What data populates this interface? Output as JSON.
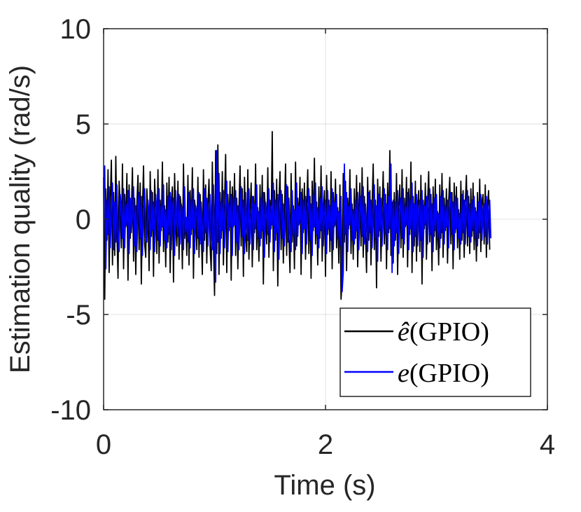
{
  "chart_data": {
    "type": "line",
    "xlabel": "Time (s)",
    "ylabel": "Estimation quality (rad/s)",
    "xlim": [
      0,
      4
    ],
    "ylim": [
      -10,
      10
    ],
    "xticks": [
      0,
      2,
      4
    ],
    "xtick_labels": [
      "0",
      "2",
      "4"
    ],
    "yticks": [
      -10,
      -5,
      0,
      5,
      10
    ],
    "ytick_labels": [
      "-10",
      "-5",
      "0",
      "5",
      "10"
    ],
    "grid": true,
    "legend_position": "bottom-right",
    "series": [
      {
        "name_prefix": "ê",
        "name_suffix": "(GPIO)",
        "color": "#000000",
        "sample_step": 0.01,
        "x_start": 0.0,
        "values": [
          2.2,
          -4.2,
          1.6,
          -1.1,
          2.6,
          -2.8,
          0.9,
          3.1,
          -2.4,
          1.4,
          -1.9,
          3.3,
          -0.7,
          -3.1,
          2.0,
          0.6,
          -1.5,
          2.9,
          -2.6,
          1.3,
          -0.4,
          2.4,
          -3.2,
          1.8,
          -1.0,
          0.3,
          2.7,
          -2.2,
          1.1,
          -2.9,
          0.8,
          2.3,
          -1.6,
          1.9,
          -3.4,
          0.5,
          2.8,
          -1.3,
          -2.0,
          1.6,
          0.2,
          -2.7,
          2.5,
          -0.9,
          1.4,
          -3.0,
          2.1,
          0.4,
          -1.8,
          2.6,
          -2.3,
          1.0,
          -0.6,
          3.0,
          -1.7,
          0.7,
          -2.5,
          1.9,
          -1.2,
          2.2,
          -2.8,
          0.9,
          1.7,
          -3.3,
          2.4,
          -0.3,
          -1.4,
          2.0,
          -2.1,
          1.2,
          0.6,
          -2.6,
          2.9,
          -1.0,
          0.1,
          -1.9,
          2.3,
          -2.4,
          1.5,
          -0.8,
          2.7,
          -3.1,
          1.0,
          0.4,
          -1.6,
          2.2,
          -2.0,
          1.3,
          -0.5,
          -2.9,
          2.6,
          -1.1,
          1.8,
          -2.3,
          0.7,
          2.1,
          -1.5,
          -2.7,
          3.0,
          -1.2,
          -4.0,
          3.6,
          -1.8,
          3.9,
          -2.9,
          1.4,
          -1.0,
          2.5,
          -2.4,
          0.9,
          3.4,
          -2.8,
          1.3,
          -0.6,
          2.0,
          -3.2,
          1.7,
          -0.4,
          2.4,
          -1.9,
          1.1,
          -2.6,
          0.5,
          2.8,
          -1.4,
          1.6,
          -3.0,
          2.2,
          -0.8,
          -1.7,
          2.6,
          -2.1,
          0.3,
          1.9,
          -2.5,
          1.2,
          -0.7,
          2.9,
          -1.6,
          0.6,
          -2.2,
          1.8,
          -1.0,
          2.3,
          -3.4,
          1.4,
          0.2,
          -1.3,
          2.7,
          -2.0,
          1.0,
          -0.5,
          4.6,
          -2.7,
          1.5,
          -1.1,
          2.1,
          -3.5,
          0.8,
          2.5,
          -1.6,
          1.3,
          -2.3,
          0.4,
          2.9,
          -1.9,
          1.7,
          -0.9,
          -2.8,
          2.4,
          -1.2,
          0.7,
          -2.6,
          3.0,
          -1.4,
          1.1,
          -0.3,
          2.2,
          -2.9,
          1.6,
          -0.7,
          1.9,
          -2.1,
          0.5,
          2.6,
          -1.8,
          1.2,
          -3.1,
          2.0,
          -0.6,
          3.2,
          -1.3,
          0.9,
          -2.4,
          1.7,
          -1.0,
          2.8,
          -2.2,
          0.3,
          1.5,
          -3.0,
          2.3,
          -0.8,
          1.0,
          -1.7,
          2.5,
          -2.6,
          1.4,
          -0.4,
          2.1,
          -1.5,
          0.6,
          -2.3,
          1.8,
          -4.2,
          -3.2,
          2.4,
          -1.2,
          2.0,
          -2.7,
          1.1,
          -0.5,
          2.6,
          -1.8,
          0.8,
          -2.1,
          1.6,
          -1.0,
          2.3,
          -2.5,
          0.4,
          1.9,
          -1.4,
          2.7,
          -2.0,
          1.2,
          -0.6,
          -2.8,
          2.2,
          -1.1,
          1.5,
          -2.4,
          0.7,
          2.9,
          -1.6,
          1.0,
          -3.6,
          2.1,
          -0.9,
          1.7,
          -2.2,
          0.5,
          2.5,
          -1.3,
          1.3,
          -2.6,
          1.9,
          -0.7,
          3.6,
          -1.9,
          0.9,
          -2.3,
          1.4,
          -1.1,
          2.4,
          -2.9,
          0.6,
          1.8,
          -1.5,
          2.6,
          -2.0,
          1.1,
          -0.4,
          2.2,
          -2.5,
          1.6,
          -0.8,
          3.0,
          -2.8,
          1.2,
          -1.4,
          2.0,
          -2.2,
          0.7,
          1.5,
          -1.7,
          2.3,
          -3.4,
          1.0,
          -0.5,
          1.9,
          -2.1,
          0.8,
          2.5,
          -1.2,
          1.3,
          -2.7,
          1.7,
          -0.9,
          2.1,
          -1.6,
          0.4,
          -2.4,
          1.8,
          -1.0,
          2.4,
          -2.0,
          1.1,
          -0.6,
          1.6,
          -2.3,
          0.9,
          2.2,
          -1.3,
          1.4,
          -2.6,
          1.9,
          -0.7,
          1.7,
          -1.5,
          0.5,
          -2.1,
          2.0,
          -1.1,
          1.5,
          -2.0,
          0.8,
          2.3,
          -1.4,
          1.2,
          -1.8,
          1.6,
          -0.9,
          1.9,
          -1.6,
          0.6,
          -2.2,
          1.4,
          -1.0,
          2.1,
          -1.7,
          0.9,
          1.3,
          -1.3,
          1.8,
          -2.0,
          0.7,
          1.5,
          -1.6
        ]
      },
      {
        "name_prefix": "e",
        "name_suffix": "(GPIO)",
        "color": "#0000ff",
        "sample_step": 0.01,
        "x_start": 0.0,
        "values": [
          1.6,
          2.8,
          -2.6,
          1.0,
          -0.8,
          1.7,
          -1.5,
          0.6,
          1.9,
          -1.6,
          0.9,
          -1.2,
          1.8,
          -0.6,
          -1.7,
          1.3,
          0.5,
          -1.0,
          1.6,
          -1.5,
          0.8,
          -0.3,
          1.5,
          -1.8,
          1.1,
          -0.7,
          0.2,
          1.7,
          -1.4,
          0.7,
          -1.7,
          0.6,
          1.4,
          -1.0,
          1.2,
          -1.9,
          0.4,
          1.6,
          -0.9,
          -1.2,
          1.0,
          0.2,
          -1.6,
          1.5,
          -0.6,
          0.9,
          -1.7,
          1.3,
          0.3,
          -1.1,
          1.6,
          -1.4,
          0.7,
          -0.4,
          1.8,
          -1.1,
          0.5,
          -1.5,
          1.2,
          -0.8,
          1.4,
          -1.6,
          0.6,
          1.1,
          -1.9,
          1.5,
          -0.2,
          -0.9,
          1.3,
          -1.3,
          0.8,
          0.4,
          -1.6,
          1.7,
          -0.7,
          0.1,
          -1.2,
          1.4,
          -1.5,
          1.0,
          -0.5,
          1.6,
          -1.8,
          0.7,
          0.3,
          -1.0,
          1.4,
          -1.3,
          0.9,
          -0.4,
          -1.7,
          1.6,
          -0.7,
          1.1,
          -1.4,
          0.5,
          1.3,
          -1.0,
          -1.6,
          1.8,
          -0.8,
          -3.3,
          3.6,
          -1.2,
          2.4,
          -1.8,
          0.9,
          -0.6,
          1.5,
          -1.5,
          0.6,
          2.0,
          -1.7,
          0.8,
          -0.4,
          1.3,
          -1.9,
          1.1,
          -0.3,
          1.5,
          -1.2,
          0.7,
          -1.6,
          0.4,
          1.7,
          -0.9,
          1.0,
          -1.8,
          1.4,
          -0.5,
          -1.1,
          1.6,
          -1.3,
          0.2,
          1.2,
          -1.6,
          0.8,
          -0.5,
          1.8,
          -1.0,
          0.4,
          -1.4,
          1.1,
          -0.6,
          1.4,
          -2.0,
          0.9,
          0.2,
          -0.8,
          1.6,
          -1.2,
          0.7,
          -0.3,
          1.9,
          -1.7,
          1.0,
          -0.7,
          1.3,
          -2.1,
          0.5,
          1.5,
          -1.0,
          0.8,
          -1.4,
          0.3,
          1.8,
          -1.2,
          1.1,
          -0.6,
          -1.7,
          1.5,
          -0.8,
          0.5,
          -1.6,
          1.9,
          -0.9,
          0.7,
          -0.2,
          1.4,
          -1.8,
          1.0,
          -0.5,
          1.2,
          -1.3,
          0.4,
          1.6,
          -1.1,
          0.8,
          -1.9,
          1.3,
          -0.4,
          1.9,
          -0.8,
          0.6,
          -1.5,
          1.1,
          -0.6,
          1.7,
          -1.4,
          0.2,
          1.0,
          -1.8,
          1.5,
          -0.5,
          0.7,
          -1.1,
          1.6,
          -1.6,
          0.9,
          -0.3,
          1.3,
          -1.0,
          0.4,
          -1.4,
          1.2,
          -3.8,
          -2.8,
          2.9,
          -0.8,
          1.4,
          -1.7,
          0.7,
          -0.3,
          1.6,
          -1.1,
          0.5,
          -1.3,
          1.0,
          -0.6,
          1.4,
          -1.6,
          0.3,
          1.2,
          -0.9,
          1.7,
          -1.3,
          0.8,
          -0.4,
          -1.7,
          1.4,
          -0.7,
          1.0,
          -1.5,
          0.5,
          1.8,
          -1.0,
          0.7,
          -2.2,
          1.3,
          -0.6,
          1.1,
          -1.4,
          0.3,
          1.6,
          -0.8,
          0.8,
          -1.6,
          1.2,
          -0.5,
          2.9,
          -2.8,
          1.0,
          -1.4,
          0.9,
          -0.7,
          1.5,
          -1.8,
          0.4,
          1.1,
          -1.0,
          1.6,
          -1.3,
          0.7,
          -0.3,
          1.4,
          -1.6,
          1.0,
          -0.5,
          1.9,
          -1.7,
          0.8,
          -0.9,
          1.3,
          -1.4,
          0.5,
          1.0,
          -1.1,
          1.5,
          -2.0,
          0.7,
          -0.3,
          1.2,
          -1.3,
          0.5,
          1.6,
          -0.8,
          0.8,
          -1.7,
          1.1,
          -0.6,
          1.3,
          -1.0,
          0.3,
          -1.5,
          1.2,
          -0.7,
          1.5,
          -1.3,
          0.7,
          -0.4,
          1.0,
          -1.5,
          0.6,
          1.4,
          -0.8,
          0.9,
          -1.6,
          1.2,
          -0.5,
          1.1,
          -1.0,
          0.3,
          -1.3,
          1.3,
          -0.7,
          1.0,
          -1.3,
          0.5,
          1.5,
          -0.9,
          0.8,
          -1.2,
          1.0,
          -0.6,
          1.2,
          -1.0,
          0.4,
          -1.4,
          0.9,
          -0.7,
          1.3,
          -1.1,
          0.6,
          0.8,
          -0.9,
          1.2,
          -1.3,
          0.5,
          1.0,
          -1.0
        ]
      }
    ]
  }
}
